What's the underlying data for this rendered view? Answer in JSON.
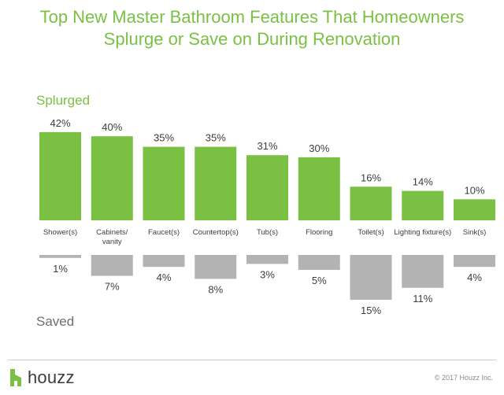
{
  "header": {
    "title_line1": "Top New Master Bathroom Features That Homeowners",
    "title_line2": "Splurge or Save on During Renovation"
  },
  "sections": {
    "splurged": "Splurged",
    "saved": "Saved"
  },
  "colors": {
    "title": "#7ac143",
    "splurged_bar": "#7ac143",
    "saved_bar": "#b3b3b3",
    "text": "#3d3d3d"
  },
  "chart_data": {
    "type": "bar",
    "title": "Top New Master Bathroom Features That Homeowners Splurge or Save on During Renovation",
    "categories": [
      "Shower(s)",
      "Cabinets/\nvanity",
      "Faucet(s)",
      "Countertop(s)",
      "Tub(s)",
      "Flooring",
      "Toilet(s)",
      "Lighting fixture(s)",
      "Sink(s)"
    ],
    "series": [
      {
        "name": "Splurged",
        "values": [
          42,
          40,
          35,
          35,
          31,
          30,
          16,
          14,
          10
        ],
        "labels": [
          "42%",
          "40%",
          "35%",
          "35%",
          "31%",
          "30%",
          "16%",
          "14%",
          "10%"
        ]
      },
      {
        "name": "Saved",
        "values": [
          1,
          7,
          4,
          8,
          3,
          5,
          15,
          11,
          4
        ],
        "labels": [
          "1%",
          "7%",
          "4%",
          "8%",
          "3%",
          "5%",
          "15%",
          "11%",
          "4%"
        ]
      }
    ],
    "unit": "%",
    "grid": false,
    "legend": "none"
  },
  "footer": {
    "logo_text": "houzz",
    "copyright": "© 2017 Houzz Inc."
  }
}
